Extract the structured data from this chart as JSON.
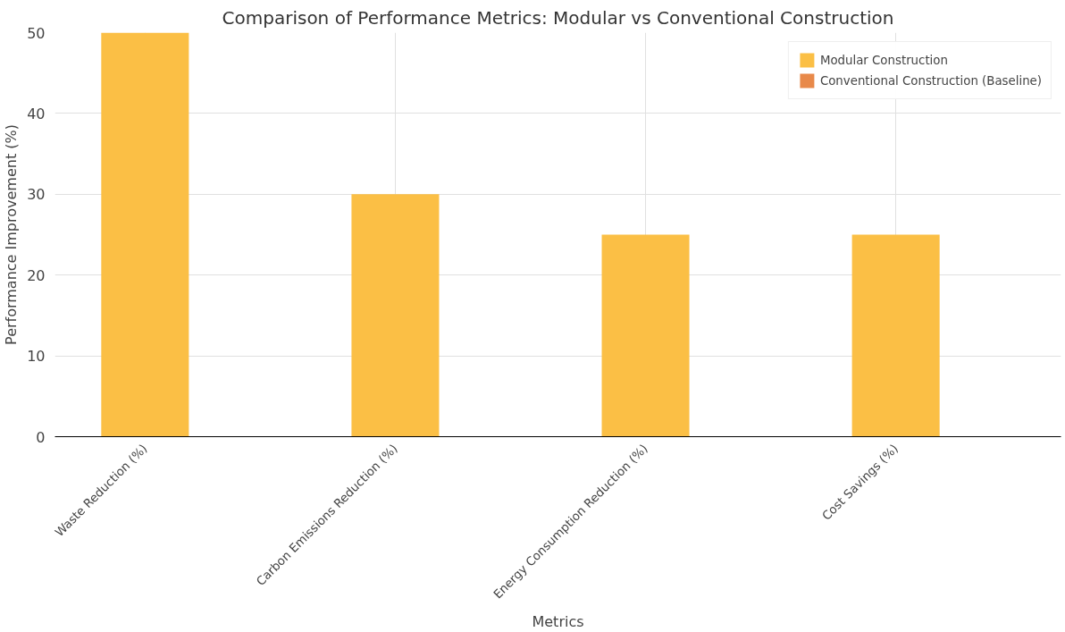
{
  "chart_data": {
    "type": "bar",
    "title": "Comparison of Performance Metrics: Modular vs Conventional Construction",
    "xlabel": "Metrics",
    "ylabel": "Performance Improvement (%)",
    "categories": [
      "Waste Reduction (%)",
      "Carbon Emissions Reduction (%)",
      "Energy Consumption Reduction (%)",
      "Cost Savings (%)"
    ],
    "series": [
      {
        "name": "Modular Construction",
        "color": "#fbbf45",
        "values": [
          50,
          30,
          25,
          25
        ]
      },
      {
        "name": "Conventional Construction (Baseline)",
        "color": "#e8894a",
        "values": [
          0,
          0,
          0,
          0
        ]
      }
    ],
    "ylim": [
      0,
      50
    ],
    "yticks": [
      0,
      10,
      20,
      30,
      40,
      50
    ],
    "grid": true,
    "legend": "top right"
  }
}
